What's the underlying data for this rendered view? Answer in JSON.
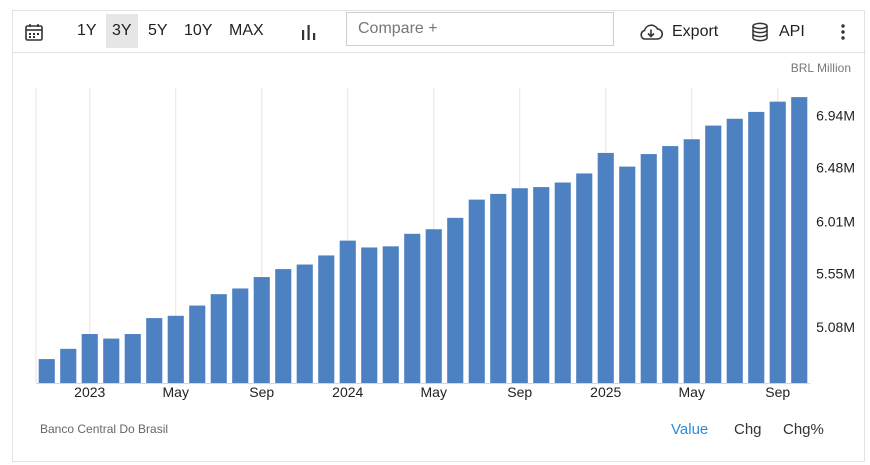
{
  "toolbar": {
    "calendar_icon": "calendar-icon",
    "ranges": [
      "1Y",
      "3Y",
      "5Y",
      "10Y",
      "MAX"
    ],
    "active_range": "3Y",
    "chart_type_icon": "bar-chart-icon",
    "compare_placeholder": "Compare +",
    "export_label": "Export",
    "export_icon": "cloud-download-icon",
    "api_label": "API",
    "api_icon": "database-icon",
    "more_icon": "more-vertical-icon"
  },
  "footer": {
    "source": "Banco Central Do Brasil",
    "modes": [
      "Value",
      "Chg",
      "Chg%"
    ],
    "active_mode": "Value"
  },
  "colors": {
    "bar": "#4e81c1",
    "active_mode": "#2d8bd8",
    "grid": "#e6e6e6"
  },
  "chart_data": {
    "type": "bar",
    "unit_label": "BRL Million",
    "x": [
      "2022-11",
      "2022-12",
      "2023-01",
      "2023-02",
      "2023-03",
      "2023-04",
      "2023-05",
      "2023-06",
      "2023-07",
      "2023-08",
      "2023-09",
      "2023-10",
      "2023-11",
      "2023-12",
      "2024-01",
      "2024-02",
      "2024-03",
      "2024-04",
      "2024-05",
      "2024-06",
      "2024-07",
      "2024-08",
      "2024-09",
      "2024-10",
      "2024-11",
      "2024-12",
      "2025-01",
      "2025-02",
      "2025-03",
      "2025-04",
      "2025-05",
      "2025-06",
      "2025-07",
      "2025-08",
      "2025-09",
      "2025-10"
    ],
    "values": [
      4.8,
      4.89,
      5.02,
      4.98,
      5.02,
      5.16,
      5.18,
      5.27,
      5.37,
      5.42,
      5.52,
      5.59,
      5.63,
      5.71,
      5.84,
      5.78,
      5.79,
      5.9,
      5.94,
      6.04,
      6.2,
      6.25,
      6.3,
      6.31,
      6.35,
      6.43,
      6.61,
      6.49,
      6.6,
      6.67,
      6.73,
      6.85,
      6.91,
      6.97,
      7.06,
      7.1
    ],
    "xtick_labels": [
      {
        "x": "2023-01",
        "label": "2023"
      },
      {
        "x": "2023-05",
        "label": "May"
      },
      {
        "x": "2023-09",
        "label": "Sep"
      },
      {
        "x": "2024-01",
        "label": "2024"
      },
      {
        "x": "2024-05",
        "label": "May"
      },
      {
        "x": "2024-09",
        "label": "Sep"
      },
      {
        "x": "2025-01",
        "label": "2025"
      },
      {
        "x": "2025-05",
        "label": "May"
      },
      {
        "x": "2025-09",
        "label": "Sep"
      }
    ],
    "yticks": [
      5.08,
      5.55,
      6.01,
      6.48,
      6.94
    ],
    "ytick_labels": [
      "5.08M",
      "5.55M",
      "6.01M",
      "6.48M",
      "6.94M"
    ],
    "ylim": [
      4.59,
      7.18
    ],
    "grid": "vertical",
    "y_axis_position": "right"
  }
}
